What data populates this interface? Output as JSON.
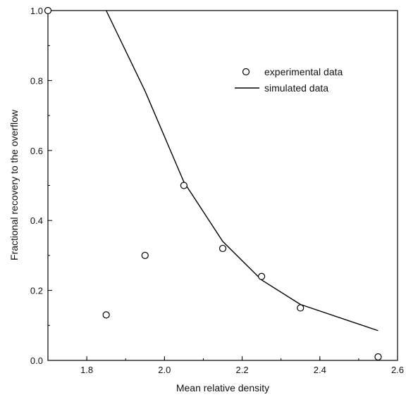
{
  "chart_data": {
    "type": "scatter",
    "xlabel": "Mean relative density",
    "ylabel": "Fractional recovery to the overflow",
    "xlim": [
      1.7,
      2.6
    ],
    "ylim": [
      0.0,
      1.0
    ],
    "xticks": [
      "1.8",
      "2.0",
      "2.2",
      "2.4",
      "2.6"
    ],
    "yticks": [
      "0.0",
      "0.2",
      "0.4",
      "0.6",
      "0.8",
      "1.0"
    ],
    "grid": false,
    "legend_position": "top-right",
    "series": [
      {
        "name": "experimental data",
        "kind": "scatter",
        "marker": "open-circle",
        "x": [
          1.7,
          1.85,
          1.95,
          2.05,
          2.15,
          2.25,
          2.35,
          2.55
        ],
        "y": [
          1.0,
          0.13,
          0.3,
          0.5,
          0.32,
          0.24,
          0.15,
          0.01
        ]
      },
      {
        "name": "simulated data",
        "kind": "line",
        "x": [
          1.85,
          1.95,
          2.05,
          2.15,
          2.25,
          2.35,
          2.55
        ],
        "y": [
          1.0,
          0.77,
          0.51,
          0.34,
          0.23,
          0.16,
          0.085
        ]
      }
    ],
    "colors": {
      "axis": "#000000",
      "marker": "#000000",
      "line": "#000000"
    }
  }
}
